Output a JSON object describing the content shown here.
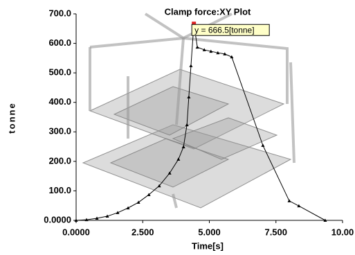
{
  "chart_data": {
    "type": "line",
    "title": "Clamp force:XY Plot",
    "x_label": "Time[s]",
    "y_label": "tonne",
    "x": [
      0,
      0.39,
      0.78,
      1.17,
      1.56,
      1.95,
      2.34,
      2.73,
      3.12,
      3.51,
      3.84,
      4.03,
      4.16,
      4.23,
      4.31,
      4.42,
      4.55,
      4.81,
      5.06,
      5.32,
      5.58,
      5.84,
      7.01,
      8.0,
      8.36,
      9.35
    ],
    "values": [
      0,
      2,
      7,
      14,
      26,
      42,
      61,
      87,
      117,
      160,
      207,
      249,
      324,
      418,
      524,
      666.5,
      587,
      578,
      573,
      568,
      564,
      554,
      254,
      66,
      49,
      0
    ],
    "color": "#000000",
    "annotation": "y = 666.5[tonne]",
    "xlim": [
      0,
      10
    ],
    "ylim": [
      0,
      700
    ],
    "xticks": [
      {
        "value": 0,
        "label": "0.0000"
      },
      {
        "value": 2.5,
        "label": "2.500"
      },
      {
        "value": 5,
        "label": "5.000"
      },
      {
        "value": 7.5,
        "label": "7.500"
      },
      {
        "value": 10,
        "label": "10.00"
      }
    ],
    "yticks": [
      {
        "value": 0,
        "label": "0.0000"
      },
      {
        "value": 100,
        "label": "100.0"
      },
      {
        "value": 200,
        "label": "200.0"
      },
      {
        "value": 300,
        "label": "300.0"
      },
      {
        "value": 400,
        "label": "400.0"
      },
      {
        "value": 500,
        "label": "500.0"
      },
      {
        "value": 600,
        "label": "600.0"
      },
      {
        "value": 700,
        "label": "700.0"
      }
    ]
  }
}
